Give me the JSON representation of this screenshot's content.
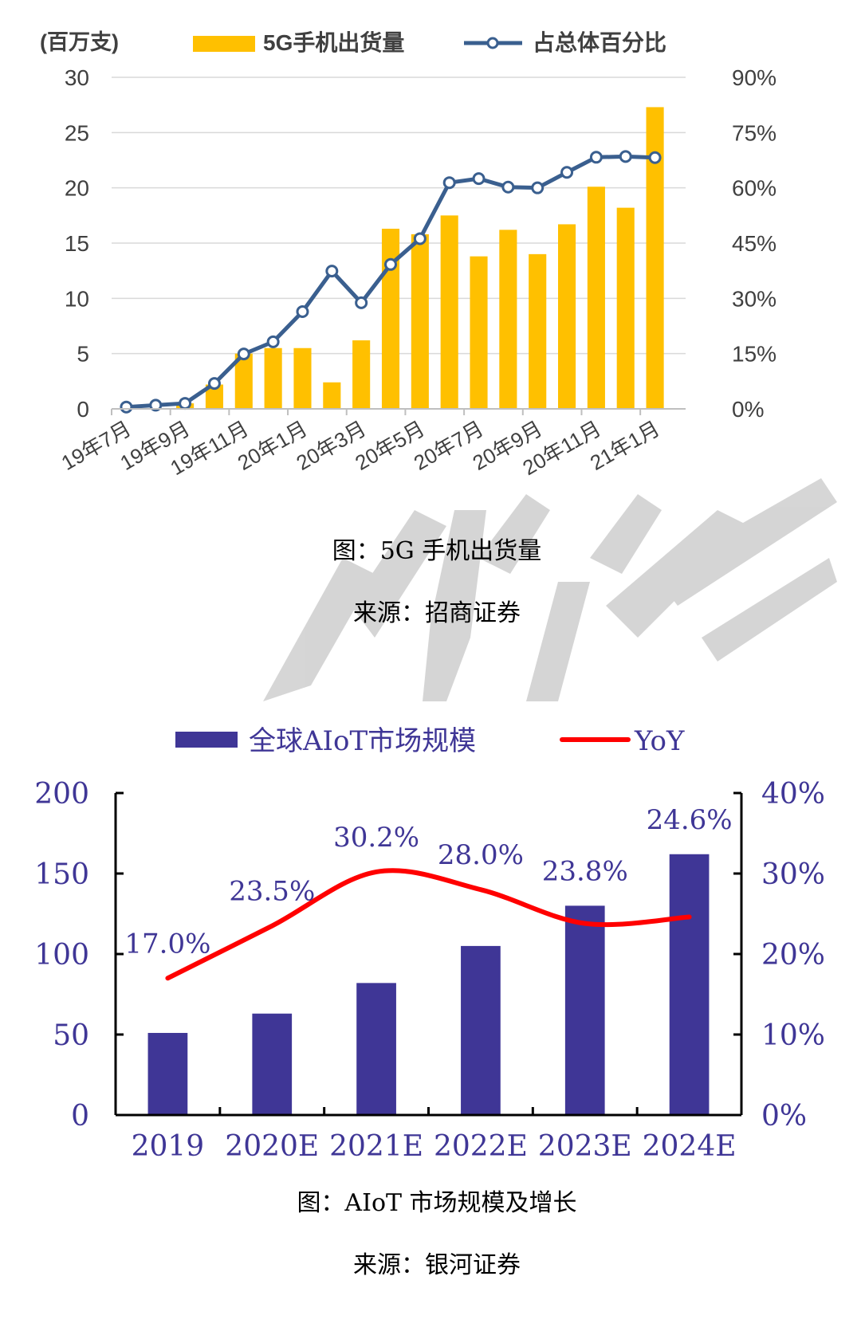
{
  "chart_data": [
    {
      "type": "bar",
      "unit_label": "(百万支)",
      "categories": [
        "19年7月",
        "19年8月",
        "19年9月",
        "19年10月",
        "19年11月",
        "19年12月",
        "20年1月",
        "20年2月",
        "20年3月",
        "20年4月",
        "20年5月",
        "20年6月",
        "20年7月",
        "20年8月",
        "20年9月",
        "20年10月",
        "20年11月",
        "20年12月",
        "21年1月"
      ],
      "tick_labels": [
        "19年7月",
        "19年9月",
        "19年11月",
        "20年1月",
        "20年3月",
        "20年5月",
        "20年7月",
        "20年9月",
        "20年11月",
        "21年1月"
      ],
      "series": [
        {
          "name": "5G手机出货量",
          "type": "bar",
          "axis": "left",
          "color": "#FFC000",
          "values": [
            0,
            0,
            0.5,
            2.2,
            5.0,
            5.5,
            5.5,
            2.4,
            6.2,
            16.3,
            15.8,
            17.5,
            13.8,
            16.2,
            14.0,
            16.7,
            20.1,
            18.2,
            27.3
          ]
        },
        {
          "name": "占总体百分比",
          "type": "line",
          "axis": "right",
          "color": "#3A5F8F",
          "values": [
            0.5,
            1.0,
            1.5,
            6.9,
            14.9,
            18.2,
            26.4,
            37.4,
            28.8,
            39.2,
            46.2,
            61.4,
            62.5,
            60.2,
            60.0,
            64.2,
            68.3,
            68.5,
            68.2
          ]
        }
      ],
      "ylim": [
        0,
        30
      ],
      "yticks": [
        "0",
        "5",
        "10",
        "15",
        "20",
        "25",
        "30"
      ],
      "y2lim": [
        0,
        90
      ],
      "y2ticks": [
        "0%",
        "15%",
        "30%",
        "45%",
        "60%",
        "75%",
        "90%"
      ],
      "grid": true,
      "legend": "top"
    },
    {
      "type": "bar",
      "categories": [
        "2019",
        "2020E",
        "2021E",
        "2022E",
        "2023E",
        "2024E"
      ],
      "series": [
        {
          "name": "全球AIoT市场规模",
          "type": "bar",
          "axis": "left",
          "color": "#3F3696",
          "values": [
            51,
            63,
            82,
            105,
            130,
            162
          ]
        },
        {
          "name": "YoY",
          "type": "line",
          "axis": "right",
          "color": "#FF0000",
          "values": [
            17.0,
            23.5,
            30.2,
            28.0,
            23.8,
            24.6
          ],
          "labels": [
            "17.0%",
            "23.5%",
            "30.2%",
            "28.0%",
            "23.8%",
            "24.6%"
          ]
        }
      ],
      "ylim": [
        0,
        200
      ],
      "yticks": [
        "0",
        "50",
        "100",
        "150",
        "200"
      ],
      "y2lim": [
        0,
        40
      ],
      "y2ticks": [
        "0%",
        "10%",
        "20%",
        "30%",
        "40%"
      ],
      "grid": false,
      "legend": "top"
    }
  ],
  "captions": {
    "chart1_title": "图：5G 手机出货量",
    "chart1_source": "来源：招商证券",
    "chart2_title": "图：AIoT 市场规模及增长",
    "chart2_source": "来源：银河证券"
  },
  "colors": {
    "watermark": "#C8C8C8",
    "axis_text_chart2": "#3F3696"
  }
}
